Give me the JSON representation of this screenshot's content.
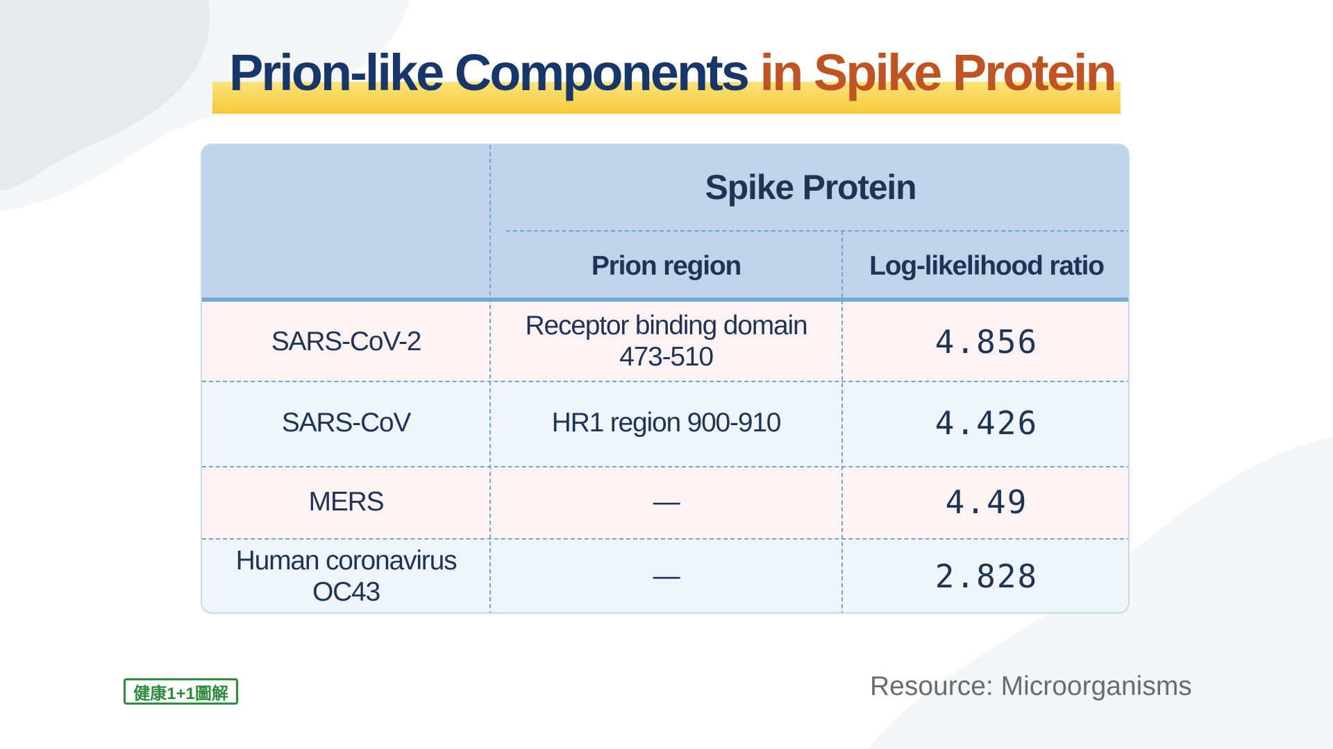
{
  "header": {
    "title_main": "Prion-like Components",
    "title_accent": "in Spike Protein"
  },
  "table": {
    "group_header": "Spike Protein",
    "columns": [
      "Prion region",
      "Log-likelihood ratio"
    ],
    "rows": [
      [
        "SARS-CoV-2",
        "Receptor binding domain 473-510",
        "4.856"
      ],
      [
        "SARS-CoV",
        "HR1 region 900-910",
        "4.426"
      ],
      [
        "MERS",
        "—",
        "4.49"
      ],
      [
        "Human coronavirus OC43",
        "—",
        "2.828"
      ]
    ]
  },
  "footer": {
    "logo": "健康1+1圖解",
    "source": "Resource: Microorganisms"
  }
}
